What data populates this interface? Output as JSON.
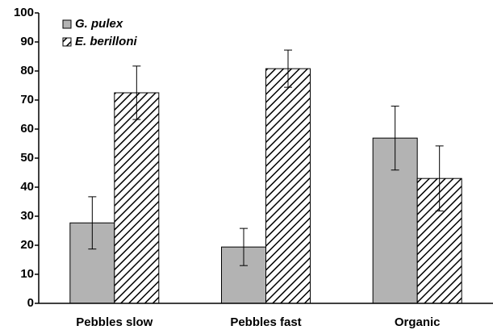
{
  "chart_data": {
    "type": "bar",
    "categories": [
      "Pebbles slow",
      "Pebbles fast",
      "Organic"
    ],
    "series": [
      {
        "name": "G. pulex",
        "color": "#b3b3b3",
        "hatch": false,
        "values": [
          27.7,
          19.4,
          56.9
        ],
        "errors": [
          9,
          6.4,
          11
        ]
      },
      {
        "name": "E. berilloni",
        "color": "#ffffff",
        "hatch": true,
        "values": [
          72.5,
          80.8,
          43
        ],
        "errors": [
          9.2,
          6.4,
          11.2
        ]
      }
    ],
    "ylim": [
      0,
      100
    ],
    "yticks": [
      0,
      10,
      20,
      30,
      40,
      50,
      60,
      70,
      80,
      90,
      100
    ],
    "grid": false,
    "legend": "top-left"
  }
}
